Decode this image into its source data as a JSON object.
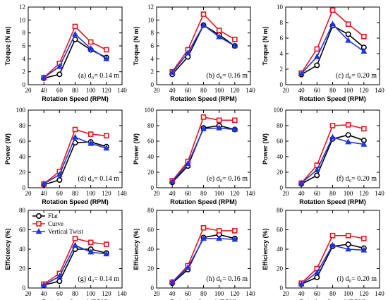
{
  "colors": {
    "Flat": "#000000",
    "Curve": "#e8141c",
    "Vertical Twist": "#1f35e0"
  },
  "markers": {
    "Flat": "circle",
    "Curve": "square",
    "Vertical Twist": "triangle"
  },
  "chart_data": [
    {
      "type": "line",
      "panel": "(a)",
      "annotation": "(a) d₀= 0.14 m",
      "xlabel": "Rotation Speed (RPM)",
      "ylabel": "Torque (N m)",
      "xlim": [
        20,
        140
      ],
      "ylim": [
        0,
        12
      ],
      "xticks": [
        20,
        40,
        60,
        80,
        100,
        120,
        140
      ],
      "yticks": [
        0,
        2,
        4,
        6,
        8,
        10,
        12
      ],
      "x": [
        40,
        60,
        80,
        100,
        120
      ],
      "series": [
        {
          "name": "Flat",
          "values": [
            1.0,
            1.6,
            7.0,
            5.4,
            4.2
          ]
        },
        {
          "name": "Curve",
          "values": [
            1.1,
            3.3,
            9.0,
            6.6,
            5.4
          ]
        },
        {
          "name": "Vertical Twist",
          "values": [
            1.1,
            2.8,
            7.8,
            5.6,
            4.0
          ]
        }
      ]
    },
    {
      "type": "line",
      "panel": "(d)",
      "annotation": "(d) d₀= 0.14 m",
      "xlabel": "Rotation Speed (RPM)",
      "ylabel": "Power (W)",
      "xlim": [
        20,
        140
      ],
      "ylim": [
        0,
        100
      ],
      "xticks": [
        20,
        40,
        60,
        80,
        100,
        120,
        140
      ],
      "yticks": [
        0,
        20,
        40,
        60,
        80,
        100
      ],
      "x": [
        40,
        60,
        80,
        100,
        120
      ],
      "series": [
        {
          "name": "Flat",
          "values": [
            4,
            10,
            58,
            59,
            53
          ]
        },
        {
          "name": "Curve",
          "values": [
            5,
            21,
            75,
            69,
            67
          ]
        },
        {
          "name": "Vertical Twist",
          "values": [
            5,
            17,
            65,
            57,
            51
          ]
        }
      ]
    },
    {
      "type": "line",
      "panel": "(g)",
      "annotation": "(g) d₀= 0.14 m",
      "xlabel": "Rotation Speed (RPM)",
      "ylabel": "Efficiency (%)",
      "xlim": [
        20,
        140
      ],
      "ylim": [
        0,
        80
      ],
      "xticks": [
        20,
        40,
        60,
        80,
        100,
        120,
        140
      ],
      "yticks": [
        0,
        20,
        40,
        60,
        80
      ],
      "x": [
        40,
        60,
        80,
        100,
        120
      ],
      "legend": [
        "Flat",
        "Curve",
        "Vertical Twist"
      ],
      "legend_position": "top-left",
      "series": [
        {
          "name": "Flat",
          "values": [
            3,
            7,
            40,
            40,
            36
          ]
        },
        {
          "name": "Curve",
          "values": [
            4,
            15,
            51,
            47,
            45
          ]
        },
        {
          "name": "Vertical Twist",
          "values": [
            3,
            12,
            44,
            37,
            35
          ]
        }
      ]
    },
    {
      "type": "line",
      "panel": "(b)",
      "annotation": "(b) d₀= 0.16 m",
      "xlabel": "Rotation Speed (RPM)",
      "ylabel": "Torque (N m)",
      "xlim": [
        20,
        140
      ],
      "ylim": [
        0,
        12
      ],
      "xticks": [
        20,
        40,
        60,
        80,
        100,
        120,
        140
      ],
      "yticks": [
        0,
        2,
        4,
        6,
        8,
        10,
        12
      ],
      "x": [
        40,
        60,
        80,
        100,
        120
      ],
      "series": [
        {
          "name": "Flat",
          "values": [
            1.6,
            4.3,
            9.2,
            7.7,
            6.0
          ]
        },
        {
          "name": "Curve",
          "values": [
            2.0,
            5.4,
            10.9,
            8.4,
            7.0
          ]
        },
        {
          "name": "Vertical Twist",
          "values": [
            1.9,
            4.9,
            9.2,
            7.4,
            6.0
          ]
        }
      ]
    },
    {
      "type": "line",
      "panel": "(e)",
      "annotation": "(e) d₀= 0.16 m",
      "xlabel": "Rotation Speed (RPM)",
      "ylabel": "Power (W)",
      "xlim": [
        20,
        140
      ],
      "ylim": [
        0,
        100
      ],
      "xticks": [
        20,
        40,
        60,
        80,
        100,
        120,
        140
      ],
      "yticks": [
        0,
        20,
        40,
        60,
        80,
        100
      ],
      "x": [
        40,
        60,
        80,
        100,
        120
      ],
      "series": [
        {
          "name": "Flat",
          "values": [
            7,
            28,
            77,
            80,
            75
          ]
        },
        {
          "name": "Curve",
          "values": [
            9,
            34,
            91,
            87,
            87
          ]
        },
        {
          "name": "Vertical Twist",
          "values": [
            8,
            31,
            76,
            77,
            75
          ]
        }
      ]
    },
    {
      "type": "line",
      "panel": "(h)",
      "annotation": "(h) d₀= 0.16 m",
      "xlabel": "Rotation Speed (RPM)",
      "ylabel": "Efficiency (%)",
      "xlim": [
        20,
        140
      ],
      "ylim": [
        0,
        80
      ],
      "xticks": [
        20,
        40,
        60,
        80,
        100,
        120,
        140
      ],
      "yticks": [
        0,
        20,
        40,
        60,
        80
      ],
      "x": [
        40,
        60,
        80,
        100,
        120
      ],
      "series": [
        {
          "name": "Flat",
          "values": [
            5,
            19,
            52,
            55,
            51
          ]
        },
        {
          "name": "Curve",
          "values": [
            6,
            23,
            62,
            59,
            59
          ]
        },
        {
          "name": "Vertical Twist",
          "values": [
            6,
            21,
            51,
            51,
            50
          ]
        }
      ]
    },
    {
      "type": "line",
      "panel": "(c)",
      "annotation": "(c) d₀= 0.20 m",
      "xlabel": "Rotation Speed (RPM)",
      "ylabel": "Torque (N m)",
      "xlim": [
        20,
        140
      ],
      "ylim": [
        0,
        10
      ],
      "xticks": [
        20,
        40,
        60,
        80,
        100,
        120,
        140
      ],
      "yticks": [
        0,
        2,
        4,
        6,
        8,
        10
      ],
      "x": [
        40,
        60,
        80,
        100,
        120
      ],
      "series": [
        {
          "name": "Flat",
          "values": [
            1.3,
            2.5,
            7.6,
            6.5,
            4.8
          ]
        },
        {
          "name": "Curve",
          "values": [
            1.5,
            4.6,
            9.6,
            7.8,
            6.2
          ]
        },
        {
          "name": "Vertical Twist",
          "values": [
            1.4,
            3.6,
            7.8,
            5.7,
            4.3
          ]
        }
      ]
    },
    {
      "type": "line",
      "panel": "(f)",
      "annotation": "(f) d₀= 0.20 m",
      "xlabel": "Rotation Speed (RPM)",
      "ylabel": "Power (W)",
      "xlim": [
        20,
        140
      ],
      "ylim": [
        0,
        100
      ],
      "xticks": [
        20,
        40,
        60,
        80,
        100,
        120,
        140
      ],
      "yticks": [
        0,
        20,
        40,
        60,
        80,
        100
      ],
      "x": [
        40,
        60,
        80,
        100,
        120
      ],
      "series": [
        {
          "name": "Flat",
          "values": [
            5,
            16,
            63,
            68,
            61
          ]
        },
        {
          "name": "Curve",
          "values": [
            6,
            29,
            80,
            81,
            76
          ]
        },
        {
          "name": "Vertical Twist",
          "values": [
            6,
            23,
            65,
            59,
            56
          ]
        }
      ]
    },
    {
      "type": "line",
      "panel": "(i)",
      "annotation": "(i) d₀= 0.20 m",
      "xlabel": "Rotation Speed (RPM)",
      "ylabel": "Efficiency (%)",
      "xlim": [
        20,
        140
      ],
      "ylim": [
        0,
        80
      ],
      "xticks": [
        20,
        40,
        60,
        80,
        100,
        120,
        140
      ],
      "yticks": [
        0,
        20,
        40,
        60,
        80
      ],
      "x": [
        40,
        60,
        80,
        100,
        120
      ],
      "series": [
        {
          "name": "Flat",
          "values": [
            4,
            11,
            43,
            45,
            41
          ]
        },
        {
          "name": "Curve",
          "values": [
            5,
            20,
            54,
            54,
            51
          ]
        },
        {
          "name": "Vertical Twist",
          "values": [
            4,
            16,
            44,
            40,
            39
          ]
        }
      ]
    }
  ]
}
